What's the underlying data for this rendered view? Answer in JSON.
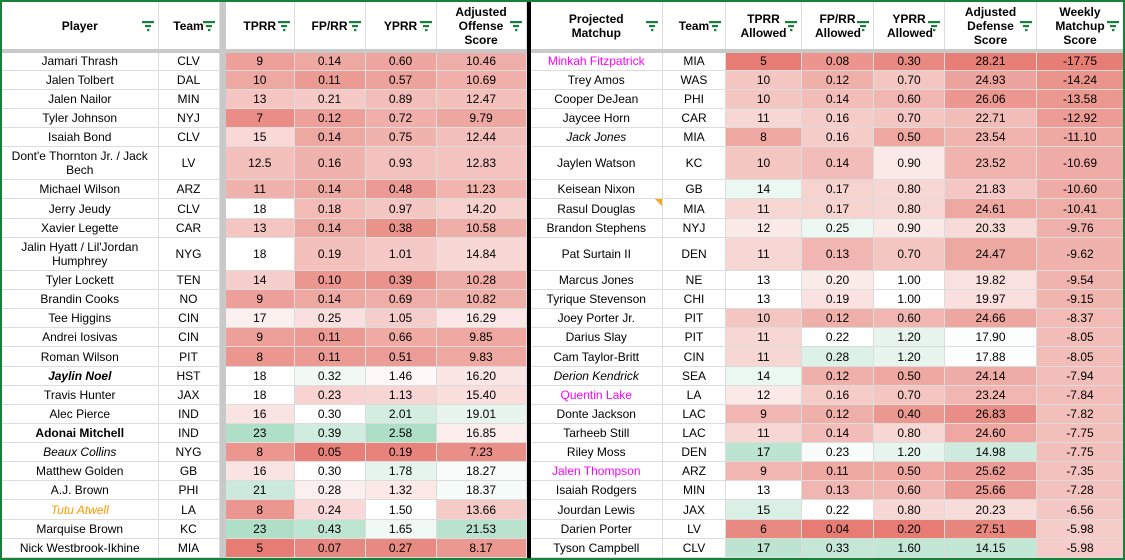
{
  "sheet": {
    "colors": {
      "scale_red": "#e67c73",
      "scale_green": "#57bb8a",
      "filter_icon": "#188038",
      "border_green": "#188038",
      "frozen_gray": "#c9c9c9",
      "gridline": "#dcdcdc",
      "divider_black": "#000000",
      "note_orange": "#f5a623",
      "magenta_text": "#ff00ff",
      "orange_text": "#ff9900"
    },
    "left_table": {
      "title": "offense",
      "columns": [
        {
          "label": "Player",
          "key": "player",
          "type": "text"
        },
        {
          "label": "Team",
          "key": "team",
          "type": "text"
        },
        {
          "label": "TPRR",
          "key": "tprr",
          "type": "num",
          "scale": {
            "min": 5,
            "mid": 18,
            "max": 30
          }
        },
        {
          "label": "FP/RR",
          "key": "fprr",
          "type": "num",
          "scale": {
            "min": 0.04,
            "mid": 0.3,
            "max": 0.7
          }
        },
        {
          "label": "YPRR",
          "key": "yprr",
          "type": "num",
          "scale": {
            "min": 0.1,
            "mid": 1.5,
            "max": 4.0
          }
        },
        {
          "label": "Adjusted Offense Score",
          "key": "adj",
          "type": "num",
          "scale": {
            "min": 5,
            "mid": 18,
            "max": 28
          }
        }
      ],
      "rows": [
        {
          "player": "Jamari Thrash",
          "team": "CLV",
          "tprr": "9",
          "fprr": "0.14",
          "yprr": "0.60",
          "adj": "10.46"
        },
        {
          "player": "Jalen Tolbert",
          "team": "DAL",
          "tprr": "10",
          "fprr": "0.11",
          "yprr": "0.57",
          "adj": "10.69"
        },
        {
          "player": "Jalen Nailor",
          "team": "MIN",
          "tprr": "13",
          "fprr": "0.21",
          "yprr": "0.89",
          "adj": "12.47"
        },
        {
          "player": "Tyler Johnson",
          "team": "NYJ",
          "tprr": "7",
          "fprr": "0.12",
          "yprr": "0.72",
          "adj": "9.79"
        },
        {
          "player": "Isaiah Bond",
          "team": "CLV",
          "tprr": "15",
          "fprr": "0.14",
          "yprr": "0.75",
          "adj": "12.44"
        },
        {
          "player": "Dont'e Thornton Jr. / Jack Bech",
          "team": "LV",
          "tprr": "12.5",
          "fprr": "0.16",
          "yprr": "0.93",
          "adj": "12.83",
          "tall": true
        },
        {
          "player": "Michael Wilson",
          "team": "ARZ",
          "tprr": "11",
          "fprr": "0.14",
          "yprr": "0.48",
          "adj": "11.23"
        },
        {
          "player": "Jerry Jeudy",
          "team": "CLV",
          "tprr": "18",
          "fprr": "0.18",
          "yprr": "0.97",
          "adj": "14.20"
        },
        {
          "player": "Xavier Legette",
          "team": "CAR",
          "tprr": "13",
          "fprr": "0.14",
          "yprr": "0.38",
          "adj": "10.58"
        },
        {
          "player": "Jalin Hyatt / Lil'Jordan Humphrey",
          "team": "NYG",
          "tprr": "18",
          "fprr": "0.19",
          "yprr": "1.01",
          "adj": "14.84",
          "tall": true
        },
        {
          "player": "Tyler Lockett",
          "team": "TEN",
          "tprr": "14",
          "fprr": "0.10",
          "yprr": "0.39",
          "adj": "10.28"
        },
        {
          "player": "Brandin Cooks",
          "team": "NO",
          "tprr": "9",
          "fprr": "0.14",
          "yprr": "0.69",
          "adj": "10.82"
        },
        {
          "player": "Tee Higgins",
          "team": "CIN",
          "tprr": "17",
          "fprr": "0.25",
          "yprr": "1.05",
          "adj": "16.29"
        },
        {
          "player": "Andrei Iosivas",
          "team": "CIN",
          "tprr": "9",
          "fprr": "0.11",
          "yprr": "0.66",
          "adj": "9.85"
        },
        {
          "player": "Roman Wilson",
          "team": "PIT",
          "tprr": "8",
          "fprr": "0.11",
          "yprr": "0.51",
          "adj": "9.83"
        },
        {
          "player": "Jaylin Noel",
          "team": "HST",
          "tprr": "18",
          "fprr": "0.32",
          "yprr": "1.46",
          "adj": "16.20",
          "style": "bold italic"
        },
        {
          "player": "Travis Hunter",
          "team": "JAX",
          "tprr": "18",
          "fprr": "0.23",
          "yprr": "1.13",
          "adj": "15.40"
        },
        {
          "player": "Alec Pierce",
          "team": "IND",
          "tprr": "16",
          "fprr": "0.30",
          "yprr": "2.01",
          "adj": "19.01"
        },
        {
          "player": "Adonai Mitchell",
          "team": "IND",
          "tprr": "23",
          "fprr": "0.39",
          "yprr": "2.58",
          "adj": "16.85",
          "style": "bold"
        },
        {
          "player": "Beaux Collins",
          "team": "NYG",
          "tprr": "8",
          "fprr": "0.05",
          "yprr": "0.19",
          "adj": "7.23",
          "style": "italic"
        },
        {
          "player": "Matthew Golden",
          "team": "GB",
          "tprr": "16",
          "fprr": "0.30",
          "yprr": "1.78",
          "adj": "18.27"
        },
        {
          "player": "A.J. Brown",
          "team": "PHI",
          "tprr": "21",
          "fprr": "0.28",
          "yprr": "1.32",
          "adj": "18.37"
        },
        {
          "player": "Tutu Atwell",
          "team": "LA",
          "tprr": "8",
          "fprr": "0.24",
          "yprr": "1.50",
          "adj": "13.66",
          "style": "orange"
        },
        {
          "player": "Marquise Brown",
          "team": "KC",
          "tprr": "23",
          "fprr": "0.43",
          "yprr": "1.65",
          "adj": "21.53"
        },
        {
          "player": "Nick Westbrook-Ikhine",
          "team": "MIA",
          "tprr": "5",
          "fprr": "0.07",
          "yprr": "0.27",
          "adj": "8.17"
        }
      ]
    },
    "right_table": {
      "title": "defense",
      "columns": [
        {
          "label": "Projected Matchup",
          "key": "player",
          "type": "text"
        },
        {
          "label": "Team",
          "key": "team",
          "type": "text"
        },
        {
          "label": "TPRR Allowed",
          "key": "tprr",
          "type": "num",
          "scale": {
            "min": 5,
            "mid": 13,
            "max": 25
          }
        },
        {
          "label": "FP/RR Allowed",
          "key": "fprr",
          "type": "num",
          "scale": {
            "min": 0.04,
            "mid": 0.22,
            "max": 0.6
          }
        },
        {
          "label": "YPRR Allowed",
          "key": "yprr",
          "type": "num",
          "scale": {
            "min": 0.2,
            "mid": 1.0,
            "max": 3.0
          }
        },
        {
          "label": "Adjusted Defense Score",
          "key": "adj",
          "type": "num",
          "scale": {
            "min": 5,
            "mid": 18,
            "max": 28.5,
            "reverse": true
          }
        },
        {
          "label": "Weekly Matchup Score",
          "key": "weekly",
          "type": "num",
          "scale": {
            "min": -18,
            "mid": 0,
            "max": 18
          }
        }
      ],
      "rows": [
        {
          "player": "Minkah Fitzpatrick",
          "team": "MIA",
          "tprr": "5",
          "fprr": "0.08",
          "yprr": "0.30",
          "adj": "28.21",
          "weekly": "-17.75",
          "style": "magenta"
        },
        {
          "player": "Trey Amos",
          "team": "WAS",
          "tprr": "10",
          "fprr": "0.12",
          "yprr": "0.70",
          "adj": "24.93",
          "weekly": "-14.24"
        },
        {
          "player": "Cooper DeJean",
          "team": "PHI",
          "tprr": "10",
          "fprr": "0.14",
          "yprr": "0.60",
          "adj": "26.06",
          "weekly": "-13.58"
        },
        {
          "player": "Jaycee Horn",
          "team": "CAR",
          "tprr": "11",
          "fprr": "0.16",
          "yprr": "0.70",
          "adj": "22.71",
          "weekly": "-12.92"
        },
        {
          "player": "Jack Jones",
          "team": "MIA",
          "tprr": "8",
          "fprr": "0.16",
          "yprr": "0.50",
          "adj": "23.54",
          "weekly": "-11.10",
          "style": "italic"
        },
        {
          "player": "Jaylen Watson",
          "team": "KC",
          "tprr": "10",
          "fprr": "0.14",
          "yprr": "0.90",
          "adj": "23.52",
          "weekly": "-10.69",
          "tall": true
        },
        {
          "player": "Keisean Nixon",
          "team": "GB",
          "tprr": "14",
          "fprr": "0.17",
          "yprr": "0.80",
          "adj": "21.83",
          "weekly": "-10.60"
        },
        {
          "player": "Rasul Douglas",
          "team": "MIA",
          "tprr": "11",
          "fprr": "0.17",
          "yprr": "0.80",
          "adj": "24.61",
          "weekly": "-10.41",
          "note": true
        },
        {
          "player": "Brandon Stephens",
          "team": "NYJ",
          "tprr": "12",
          "fprr": "0.25",
          "yprr": "0.90",
          "adj": "20.33",
          "weekly": "-9.76"
        },
        {
          "player": "Pat Surtain II",
          "team": "DEN",
          "tprr": "11",
          "fprr": "0.13",
          "yprr": "0.70",
          "adj": "24.47",
          "weekly": "-9.62",
          "tall": true
        },
        {
          "player": "Marcus Jones",
          "team": "NE",
          "tprr": "13",
          "fprr": "0.20",
          "yprr": "1.00",
          "adj": "19.82",
          "weekly": "-9.54"
        },
        {
          "player": "Tyrique Stevenson",
          "team": "CHI",
          "tprr": "13",
          "fprr": "0.19",
          "yprr": "1.00",
          "adj": "19.97",
          "weekly": "-9.15"
        },
        {
          "player": "Joey Porter Jr.",
          "team": "PIT",
          "tprr": "10",
          "fprr": "0.12",
          "yprr": "0.60",
          "adj": "24.66",
          "weekly": "-8.37"
        },
        {
          "player": "Darius Slay",
          "team": "PIT",
          "tprr": "11",
          "fprr": "0.22",
          "yprr": "1.20",
          "adj": "17.90",
          "weekly": "-8.05"
        },
        {
          "player": "Cam Taylor-Britt",
          "team": "CIN",
          "tprr": "11",
          "fprr": "0.28",
          "yprr": "1.20",
          "adj": "17.88",
          "weekly": "-8.05"
        },
        {
          "player": "Derion Kendrick",
          "team": "SEA",
          "tprr": "14",
          "fprr": "0.12",
          "yprr": "0.50",
          "adj": "24.14",
          "weekly": "-7.94",
          "style": "italic"
        },
        {
          "player": "Quentin Lake",
          "team": "LA",
          "tprr": "12",
          "fprr": "0.16",
          "yprr": "0.70",
          "adj": "23.24",
          "weekly": "-7.84",
          "style": "magenta"
        },
        {
          "player": "Donte Jackson",
          "team": "LAC",
          "tprr": "9",
          "fprr": "0.12",
          "yprr": "0.40",
          "adj": "26.83",
          "weekly": "-7.82"
        },
        {
          "player": "Tarheeb Still",
          "team": "LAC",
          "tprr": "11",
          "fprr": "0.14",
          "yprr": "0.80",
          "adj": "24.60",
          "weekly": "-7.75"
        },
        {
          "player": "Riley Moss",
          "team": "DEN",
          "tprr": "17",
          "fprr": "0.23",
          "yprr": "1.20",
          "adj": "14.98",
          "weekly": "-7.75"
        },
        {
          "player": "Jalen Thompson",
          "team": "ARZ",
          "tprr": "9",
          "fprr": "0.11",
          "yprr": "0.50",
          "adj": "25.62",
          "weekly": "-7.35",
          "style": "magenta"
        },
        {
          "player": "Isaiah Rodgers",
          "team": "MIN",
          "tprr": "13",
          "fprr": "0.13",
          "yprr": "0.60",
          "adj": "25.66",
          "weekly": "-7.28"
        },
        {
          "player": "Jourdan Lewis",
          "team": "JAX",
          "tprr": "15",
          "fprr": "0.22",
          "yprr": "0.80",
          "adj": "20.23",
          "weekly": "-6.56"
        },
        {
          "player": "Darien Porter",
          "team": "LV",
          "tprr": "6",
          "fprr": "0.04",
          "yprr": "0.20",
          "adj": "27.51",
          "weekly": "-5.98"
        },
        {
          "player": "Tyson Campbell",
          "team": "CLV",
          "tprr": "17",
          "fprr": "0.33",
          "yprr": "1.60",
          "adj": "14.15",
          "weekly": "-5.98"
        }
      ]
    }
  }
}
